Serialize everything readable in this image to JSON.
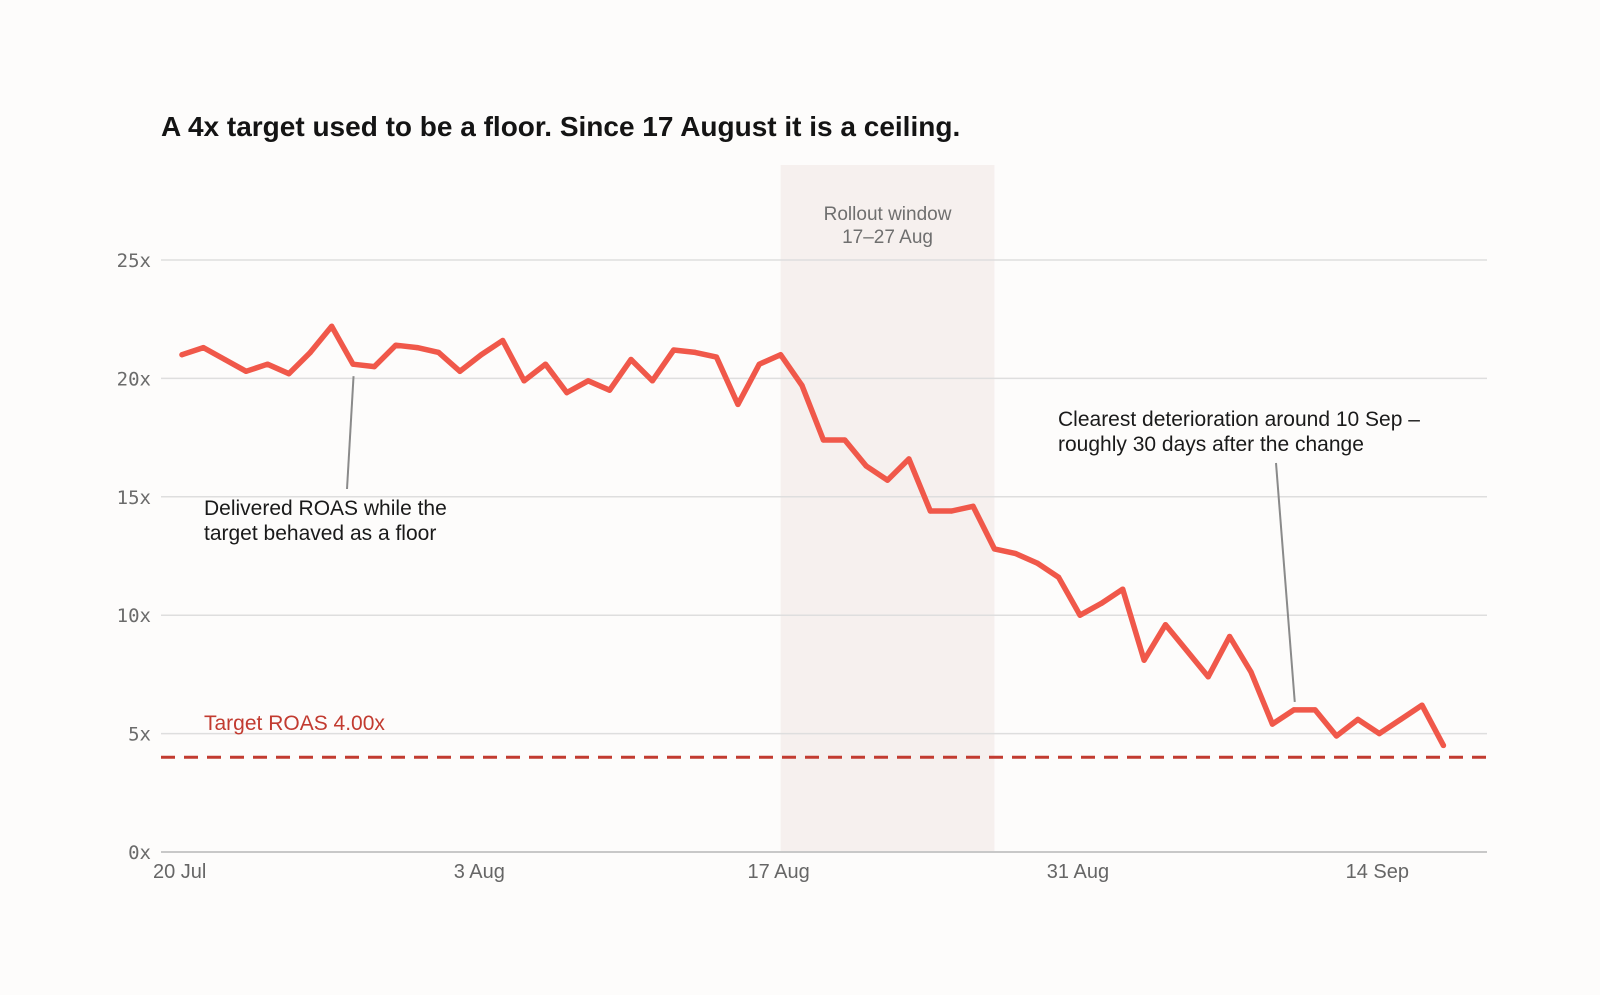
{
  "chart_data": {
    "type": "line",
    "title": "A 4x target used to be a floor. Since 17 August it is a ceiling.",
    "x_start": "20 Jul",
    "x_tick_labels": [
      "20 Jul",
      "3 Aug",
      "17 Aug",
      "31 Aug",
      "14 Sep"
    ],
    "x_tick_day_offsets": [
      0,
      14,
      28,
      42,
      56
    ],
    "ylim": [
      0,
      25
    ],
    "y_ticks": [
      0,
      5,
      10,
      15,
      20,
      25
    ],
    "y_tick_labels": [
      "0x",
      "5x",
      "10x",
      "15x",
      "20x",
      "25x"
    ],
    "grid": true,
    "series": [
      {
        "values": [
          21.0,
          21.3,
          20.8,
          20.3,
          20.6,
          20.2,
          21.1,
          22.2,
          20.6,
          20.5,
          21.4,
          21.3,
          21.1,
          20.3,
          21.0,
          21.6,
          19.9,
          20.6,
          19.4,
          19.9,
          19.5,
          20.8,
          19.9,
          21.2,
          21.1,
          20.9,
          18.9,
          20.6,
          21.0,
          19.7,
          17.4,
          17.4,
          16.3,
          15.7,
          16.6,
          14.4,
          14.4,
          14.6,
          12.8,
          12.6,
          12.2,
          11.6,
          10.0,
          10.5,
          11.1,
          8.1,
          9.6,
          8.5,
          7.4,
          9.1,
          7.6,
          5.4,
          6.0,
          6.0,
          4.9,
          5.6,
          5.0,
          5.6,
          6.2,
          4.5
        ],
        "color": "#f0584a"
      }
    ],
    "reference_line": {
      "value": 4.0,
      "label": "Target ROAS 4.00x",
      "color": "#c23b30",
      "style": "dashed"
    },
    "shaded_region": {
      "label_line1": "Rollout window",
      "label_line2": "17–27 Aug",
      "start_day": 28,
      "end_day": 38,
      "color": "#f6f0ee"
    },
    "annotations": [
      {
        "lines": [
          "Delivered ROAS while the",
          "target behaved as a floor"
        ],
        "point_day": 8
      },
      {
        "lines": [
          "Clearest deterioration around 10 Sep –",
          "roughly 30 days after the change"
        ],
        "point_day": 52
      }
    ]
  }
}
